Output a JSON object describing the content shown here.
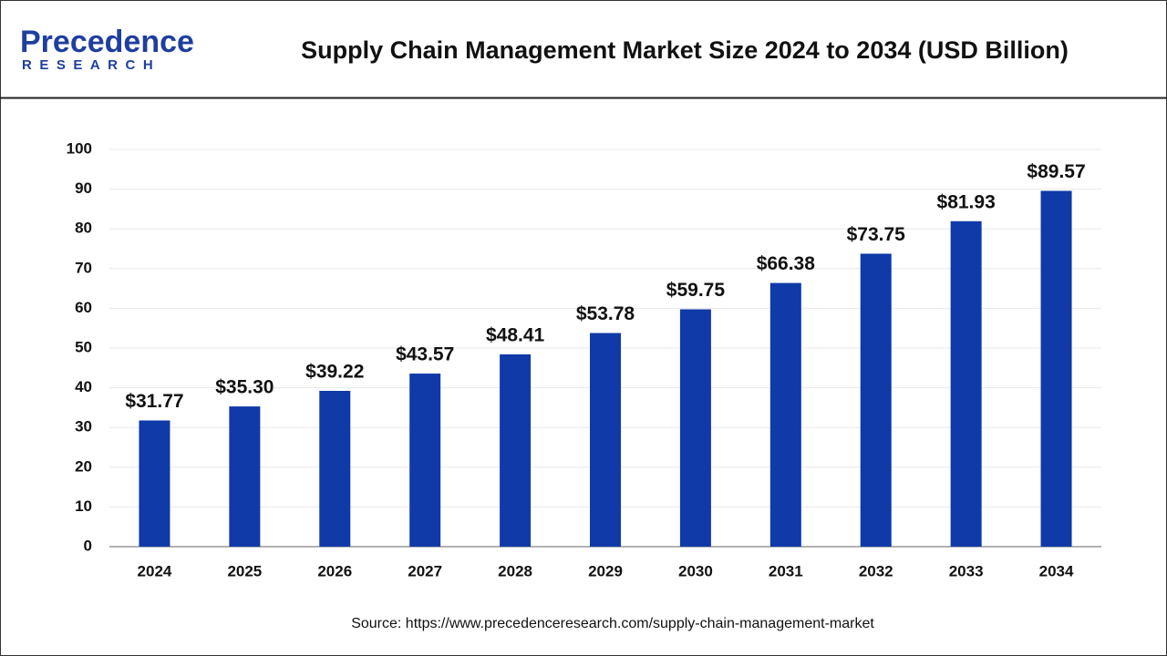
{
  "header": {
    "logo_main": "Precedence",
    "logo_sub": "RESEARCH"
  },
  "chart_data": {
    "type": "bar",
    "title": "Supply Chain Management Market Size 2024 to 2034 (USD Billion)",
    "categories": [
      "2024",
      "2025",
      "2026",
      "2027",
      "2028",
      "2029",
      "2030",
      "2031",
      "2032",
      "2033",
      "2034"
    ],
    "values": [
      31.77,
      35.3,
      39.22,
      43.57,
      48.41,
      53.78,
      59.75,
      66.38,
      73.75,
      81.93,
      89.57
    ],
    "value_labels": [
      "$31.77",
      "$35.30",
      "$39.22",
      "$43.57",
      "$48.41",
      "$53.78",
      "$59.75",
      "$66.38",
      "$73.75",
      "$81.93",
      "$89.57"
    ],
    "color": "#0f3aa8",
    "ylim": [
      0,
      100
    ],
    "yticks": [
      0,
      10,
      20,
      30,
      40,
      50,
      60,
      70,
      80,
      90,
      100
    ],
    "grid": true,
    "source": "Source: https://www.precedenceresearch.com/supply-chain-management-market"
  }
}
